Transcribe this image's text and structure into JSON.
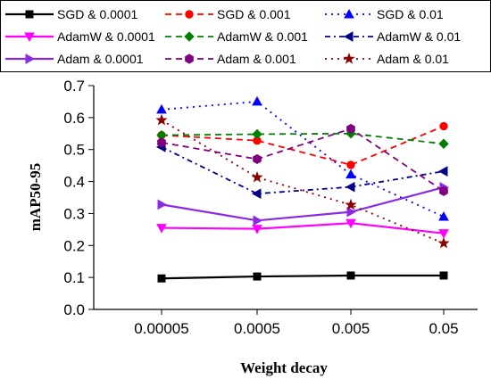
{
  "chart_data": {
    "type": "line",
    "xlabel": "Weight decay",
    "ylabel": "mAP50-95",
    "categories": [
      "0.00005",
      "0.0005",
      "0.005",
      "0.05"
    ],
    "ylim": [
      0.0,
      0.7
    ],
    "yticks": [
      "0.0",
      "0.1",
      "0.2",
      "0.3",
      "0.4",
      "0.5",
      "0.6",
      "0.7"
    ],
    "grid": false,
    "legend_position": "top",
    "series": [
      {
        "name": "SGD & 0.0001",
        "values": [
          0.097,
          0.103,
          0.106,
          0.106
        ],
        "color": "#000000",
        "dash": "solid",
        "marker": "square"
      },
      {
        "name": "SGD & 0.001",
        "values": [
          0.545,
          0.528,
          0.452,
          0.573
        ],
        "color": "#ff0000",
        "dash": "dash",
        "marker": "circle"
      },
      {
        "name": "SGD & 0.01",
        "values": [
          0.625,
          0.65,
          0.422,
          0.29
        ],
        "color": "#0000ff",
        "dash": "dot",
        "marker": "triangle-up"
      },
      {
        "name": "AdamW & 0.0001",
        "values": [
          0.255,
          0.252,
          0.27,
          0.238
        ],
        "color": "#ff00ff",
        "dash": "solid",
        "marker": "triangle-down"
      },
      {
        "name": "AdamW & 0.001",
        "values": [
          0.545,
          0.548,
          0.55,
          0.518
        ],
        "color": "#008000",
        "dash": "dash",
        "marker": "diamond"
      },
      {
        "name": "AdamW & 0.01",
        "values": [
          0.508,
          0.362,
          0.383,
          0.432
        ],
        "color": "#00008b",
        "dash": "dashdot",
        "marker": "triangle-left"
      },
      {
        "name": "Adam & 0.0001",
        "values": [
          0.328,
          0.278,
          0.305,
          0.382
        ],
        "color": "#8a2be2",
        "dash": "solid",
        "marker": "triangle-right"
      },
      {
        "name": "Adam & 0.001",
        "values": [
          0.522,
          0.47,
          0.565,
          0.37
        ],
        "color": "#800080",
        "dash": "dash",
        "marker": "hexagon"
      },
      {
        "name": "Adam & 0.01",
        "values": [
          0.592,
          0.413,
          0.327,
          0.207
        ],
        "color": "#8b0000",
        "dash": "dot",
        "marker": "star"
      }
    ]
  }
}
